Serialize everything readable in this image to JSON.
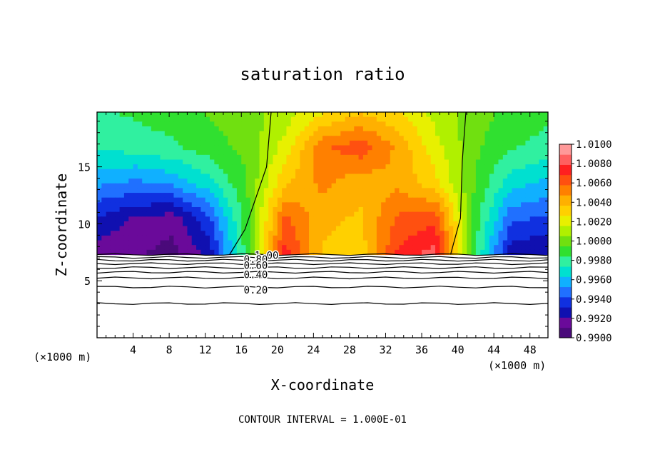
{
  "chart_data": {
    "type": "heatmap",
    "title": "saturation ratio",
    "xlabel": "X-coordinate",
    "ylabel": "Z-coordinate",
    "x_unit_label": "(×1000 m)",
    "xlim": [
      0,
      50
    ],
    "ylim": [
      0,
      19.8
    ],
    "x_ticks": [
      4,
      8,
      12,
      16,
      20,
      24,
      28,
      32,
      36,
      40,
      44,
      48
    ],
    "y_ticks": [
      5,
      10,
      15
    ],
    "footer": "CONTOUR INTERVAL = 1.000E-01",
    "colorbar": {
      "min": 0.99,
      "max": 1.01,
      "labels": [
        "1.0100",
        "1.0080",
        "1.0060",
        "1.0040",
        "1.0020",
        "1.0000",
        "0.9980",
        "0.9960",
        "0.9940",
        "0.9920",
        "0.9900"
      ],
      "colors": [
        "#4a0a7a",
        "#6a0a9a",
        "#1010b0",
        "#1030e0",
        "#2070ff",
        "#10b0ff",
        "#00e0d0",
        "#30f0a0",
        "#30e030",
        "#70e010",
        "#b0f000",
        "#e8f000",
        "#ffd000",
        "#ffb000",
        "#ff8000",
        "#ff5010",
        "#ff2020",
        "#ff6060",
        "#ff9999"
      ]
    },
    "contour_labels": [
      {
        "text": "1.00",
        "x": 18.8,
        "z": 7.25
      },
      {
        "text": "0.80",
        "x": 17.6,
        "z": 6.9
      },
      {
        "text": "0.60",
        "x": 17.6,
        "z": 6.35
      },
      {
        "text": "0.40",
        "x": 17.6,
        "z": 5.55
      },
      {
        "text": "0.20",
        "x": 17.6,
        "z": 4.2
      }
    ],
    "cloud_base_z": 7.3,
    "saturation_boundary": {
      "left": [
        [
          14.7,
          7.3
        ],
        [
          16.4,
          9.5
        ],
        [
          18.8,
          15.0
        ],
        [
          19.3,
          19.8
        ]
      ],
      "right": [
        [
          39.2,
          7.3
        ],
        [
          40.3,
          10.5
        ],
        [
          40.5,
          15.5
        ],
        [
          40.9,
          19.8
        ]
      ]
    },
    "cloud_field": [
      [
        0.9983,
        0.9986,
        0.999,
        0.9996,
        1.0,
        1.001,
        1.0025,
        1.0035,
        1.0028,
        1.0012,
        1.0,
        0.9992,
        0.9987
      ],
      [
        0.9975,
        0.9978,
        0.9982,
        0.999,
        0.9998,
        1.002,
        1.0055,
        1.0065,
        1.0045,
        1.002,
        0.9998,
        0.9985,
        0.998
      ],
      [
        0.9955,
        0.995,
        0.9955,
        0.997,
        0.9995,
        1.0035,
        1.005,
        1.004,
        1.0045,
        1.003,
        0.9996,
        0.9968,
        0.996
      ],
      [
        0.993,
        0.992,
        0.9915,
        0.994,
        0.9992,
        1.006,
        1.004,
        1.0035,
        1.006,
        1.0065,
        0.9993,
        0.9945,
        0.994
      ],
      [
        0.9915,
        0.9912,
        0.9906,
        0.9925,
        0.999,
        1.0075,
        1.0035,
        1.003,
        1.007,
        1.0085,
        0.999,
        0.9925,
        0.992
      ]
    ]
  }
}
